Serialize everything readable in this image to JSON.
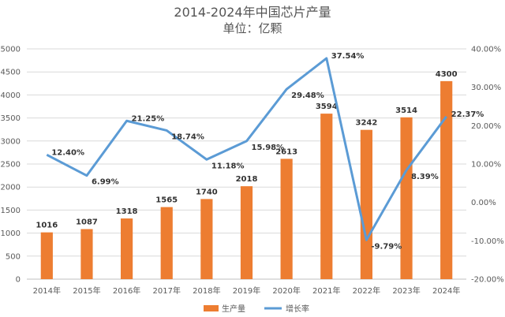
{
  "chart_data": {
    "type": "bar+line",
    "title": "2014-2024年中国芯片产量",
    "subtitle": "单位：亿颗",
    "categories": [
      "2014年",
      "2015年",
      "2016年",
      "2017年",
      "2018年",
      "2019年",
      "2020年",
      "2021年",
      "2022年",
      "2023年",
      "2024年"
    ],
    "series": [
      {
        "name": "生产量",
        "type": "bar",
        "axis": "left",
        "color": "#ED7D31",
        "values": [
          1016,
          1087,
          1318,
          1565,
          1740,
          2018,
          2613,
          3594,
          3242,
          3514,
          4300
        ],
        "labels": [
          "1016",
          "1087",
          "1318",
          "1565",
          "1740",
          "2018",
          "2613",
          "3594",
          "3242",
          "3514",
          "4300"
        ]
      },
      {
        "name": "增长率",
        "type": "line",
        "axis": "right",
        "color": "#5B9BD5",
        "values": [
          12.4,
          6.99,
          21.25,
          18.74,
          11.18,
          15.98,
          29.48,
          37.54,
          -9.79,
          8.39,
          22.37
        ],
        "labels": [
          "12.40%",
          "6.99%",
          "21.25%",
          "18.74%",
          "11.18%",
          "15.98%",
          "29.48%",
          "37.54%",
          "-9.79%",
          "8.39%",
          "22.37%"
        ]
      }
    ],
    "y_left": {
      "min": 0,
      "max": 5000,
      "ticks": [
        "0",
        "500",
        "1000",
        "1500",
        "2000",
        "2500",
        "3000",
        "3500",
        "4000",
        "4500",
        "5000"
      ]
    },
    "y_right": {
      "min": -20,
      "max": 40,
      "ticks": [
        "-20.00%",
        "-10.00%",
        "0.00%",
        "10.00%",
        "20.00%",
        "30.00%",
        "40.00%"
      ]
    },
    "grid": true,
    "legend_position": "bottom"
  }
}
